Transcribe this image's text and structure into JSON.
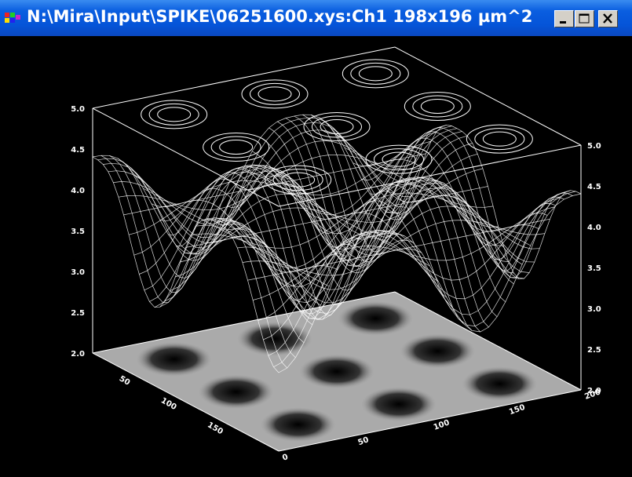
{
  "window": {
    "title": "N:\\Mira\\Input\\SPIKE\\06251600.xys:Ch1 198x196 µm^2"
  },
  "plot": {
    "left_axis_ticks": [
      "5.0",
      "4.5",
      "4.0",
      "3.5",
      "3.0",
      "2.5",
      "2.0"
    ],
    "right_axis_ticks": [
      "5.0",
      "4.5",
      "4.0",
      "3.5",
      "3.0",
      "2.5",
      "2.0"
    ],
    "front_axis_ticks": [
      "0",
      "50",
      "100",
      "150",
      "200"
    ],
    "side_axis_ticks": [
      "50",
      "100",
      "150"
    ]
  }
}
